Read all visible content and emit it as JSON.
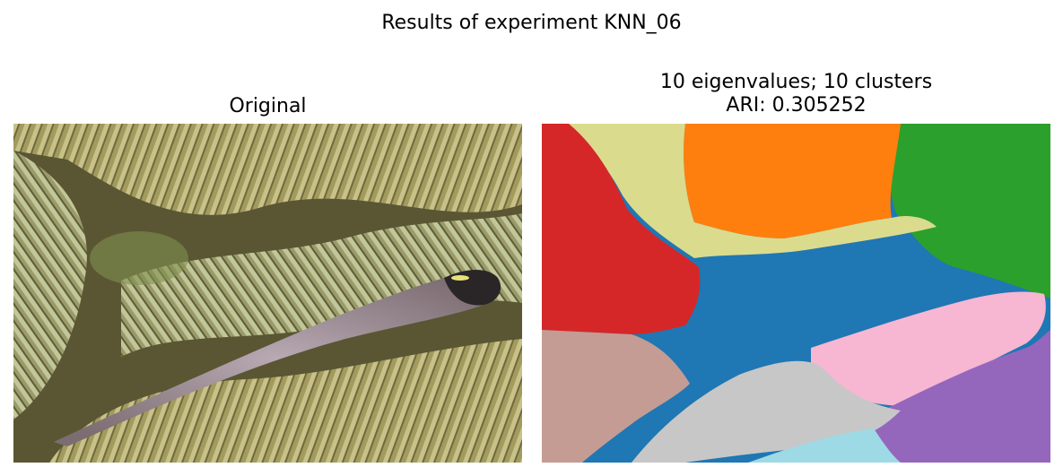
{
  "figure": {
    "suptitle": "Results of experiment KNN_06"
  },
  "left_panel": {
    "title": "Original",
    "image_content": "photo of a goby fish lying on ridged coral"
  },
  "right_panel": {
    "title_line1": "10 eigenvalues; 10 clusters",
    "title_line2": "ARI: 0.305252",
    "image_content": "segmentation map with 10 colored clusters"
  },
  "cluster_colors": {
    "red": "#d62728",
    "khaki": "#dbdb8d",
    "orange": "#ff7f0e",
    "green": "#2ca02c",
    "blue": "#1f77b4",
    "pink": "#f7b6d2",
    "purple": "#9467bd",
    "brown": "#c49c94",
    "gray": "#c7c7c7",
    "cyan": "#9edae5"
  }
}
